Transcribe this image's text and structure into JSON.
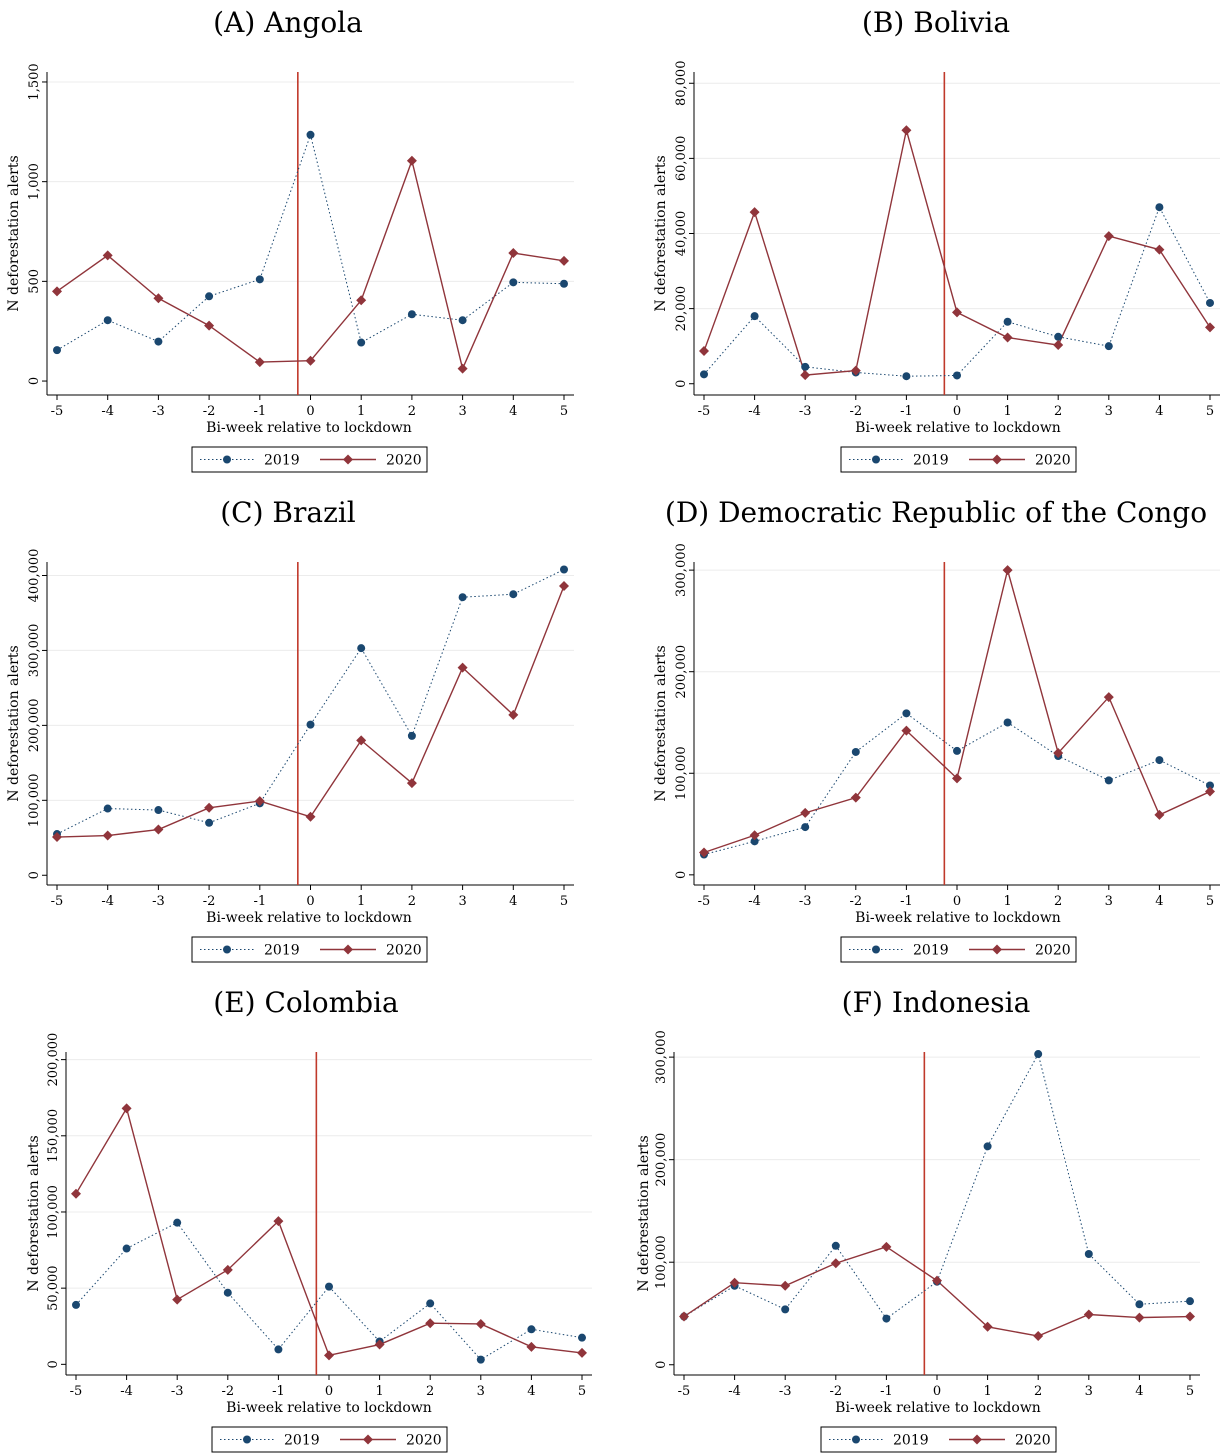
{
  "chart_data": [
    {
      "type": "line",
      "title": "(A) Angola",
      "xlabel": "Bi-week relative to lockdown",
      "ylabel": "N deforestation alerts",
      "x": [
        -5,
        -4,
        -3,
        -2,
        -1,
        0,
        1,
        2,
        3,
        4,
        5
      ],
      "xticks": [
        "-5",
        "-4",
        "-3",
        "-2",
        "-1",
        "0",
        "1",
        "2",
        "3",
        "4",
        "5"
      ],
      "yticks": [
        {
          "v": 0,
          "label": "0"
        },
        {
          "v": 500,
          "label": "500"
        },
        {
          "v": 1000,
          "label": "1,000"
        },
        {
          "v": 1500,
          "label": "1,500"
        }
      ],
      "ylim": [
        -70,
        1550
      ],
      "lockdown_x": -0.25,
      "series": [
        {
          "name": "2019",
          "values": [
            155,
            305,
            198,
            425,
            510,
            1235,
            193,
            335,
            305,
            495,
            488
          ]
        },
        {
          "name": "2020",
          "values": [
            450,
            630,
            415,
            278,
            95,
            102,
            405,
            1105,
            62,
            642,
            603
          ]
        }
      ]
    },
    {
      "type": "line",
      "title": "(B) Bolivia",
      "xlabel": "Bi-week relative to lockdown",
      "ylabel": "N deforestation alerts",
      "x": [
        -5,
        -4,
        -3,
        -2,
        -1,
        0,
        1,
        2,
        3,
        4,
        5
      ],
      "xticks": [
        "-5",
        "-4",
        "-3",
        "-2",
        "-1",
        "0",
        "1",
        "2",
        "3",
        "4",
        "5"
      ],
      "yticks": [
        {
          "v": 0,
          "label": "0"
        },
        {
          "v": 20000,
          "label": "20,000"
        },
        {
          "v": 40000,
          "label": "40,000"
        },
        {
          "v": 60000,
          "label": "60,000"
        },
        {
          "v": 80000,
          "label": "80,000"
        }
      ],
      "ylim": [
        -3000,
        83000
      ],
      "lockdown_x": -0.25,
      "series": [
        {
          "name": "2019",
          "values": [
            2500,
            18000,
            4500,
            3000,
            2000,
            2200,
            16500,
            12500,
            10000,
            47000,
            21500
          ]
        },
        {
          "name": "2020",
          "values": [
            8700,
            45700,
            2300,
            3500,
            67500,
            19000,
            12300,
            10300,
            39300,
            35700,
            15000
          ]
        }
      ]
    },
    {
      "type": "line",
      "title": "(C) Brazil",
      "xlabel": "Bi-week relative to lockdown",
      "ylabel": "N deforestation alerts",
      "x": [
        -5,
        -4,
        -3,
        -2,
        -1,
        0,
        1,
        2,
        3,
        4,
        5
      ],
      "xticks": [
        "-5",
        "-4",
        "-3",
        "-2",
        "-1",
        "0",
        "1",
        "2",
        "3",
        "4",
        "5"
      ],
      "yticks": [
        {
          "v": 0,
          "label": "0"
        },
        {
          "v": 100000,
          "label": "100,000"
        },
        {
          "v": 200000,
          "label": "200,000"
        },
        {
          "v": 300000,
          "label": "300,000"
        },
        {
          "v": 400000,
          "label": "400,000"
        }
      ],
      "ylim": [
        -13000,
        418000
      ],
      "lockdown_x": -0.25,
      "series": [
        {
          "name": "2019",
          "values": [
            55000,
            89000,
            87000,
            70000,
            96000,
            201000,
            303000,
            186000,
            371000,
            375000,
            408000
          ]
        },
        {
          "name": "2020",
          "values": [
            51000,
            53000,
            61000,
            90000,
            99000,
            78000,
            180000,
            123000,
            277000,
            214000,
            386000
          ]
        }
      ]
    },
    {
      "type": "line",
      "title": "(D) Democratic Republic of the Congo",
      "xlabel": "Bi-week relative to lockdown",
      "ylabel": "N deforestation alerts",
      "x": [
        -5,
        -4,
        -3,
        -2,
        -1,
        0,
        1,
        2,
        3,
        4,
        5
      ],
      "xticks": [
        "-5",
        "-4",
        "-3",
        "-2",
        "-1",
        "0",
        "1",
        "2",
        "3",
        "4",
        "5"
      ],
      "yticks": [
        {
          "v": 0,
          "label": "0"
        },
        {
          "v": 100000,
          "label": "100,000"
        },
        {
          "v": 200000,
          "label": "200,000"
        },
        {
          "v": 300000,
          "label": "300,000"
        }
      ],
      "ylim": [
        -10000,
        308000
      ],
      "lockdown_x": -0.25,
      "series": [
        {
          "name": "2019",
          "values": [
            20000,
            33000,
            47000,
            121000,
            159000,
            122000,
            150000,
            117000,
            93000,
            113000,
            88000
          ]
        },
        {
          "name": "2020",
          "values": [
            22000,
            39000,
            61000,
            76000,
            142000,
            95000,
            300000,
            120000,
            175000,
            59000,
            82000
          ]
        }
      ]
    },
    {
      "type": "line",
      "title": "(E) Colombia",
      "xlabel": "Bi-week relative to lockdown",
      "ylabel": "N deforestation alerts",
      "x": [
        -5,
        -4,
        -3,
        -2,
        -1,
        0,
        1,
        2,
        3,
        4,
        5
      ],
      "xticks": [
        "-5",
        "-4",
        "-3",
        "-2",
        "-1",
        "0",
        "1",
        "2",
        "3",
        "4",
        "5"
      ],
      "yticks": [
        {
          "v": 0,
          "label": "0"
        },
        {
          "v": 50000,
          "label": "50,000"
        },
        {
          "v": 100000,
          "label": "100,000"
        },
        {
          "v": 150000,
          "label": "150,000"
        },
        {
          "v": 200000,
          "label": "200,000"
        }
      ],
      "ylim": [
        -7000,
        205000
      ],
      "lockdown_x": -0.25,
      "series": [
        {
          "name": "2019",
          "values": [
            39000,
            76000,
            93000,
            47000,
            9800,
            51000,
            15000,
            40000,
            3100,
            23000,
            17500
          ]
        },
        {
          "name": "2020",
          "values": [
            112000,
            168000,
            42500,
            62000,
            94000,
            5900,
            13000,
            27000,
            26500,
            11500,
            7500
          ]
        }
      ]
    },
    {
      "type": "line",
      "title": "(F) Indonesia",
      "xlabel": "Bi-week relative to lockdown",
      "ylabel": "N deforestation alerts",
      "x": [
        -5,
        -4,
        -3,
        -2,
        -1,
        0,
        1,
        2,
        3,
        4,
        5
      ],
      "xticks": [
        "-5",
        "-4",
        "-3",
        "-2",
        "-1",
        "0",
        "1",
        "2",
        "3",
        "4",
        "5"
      ],
      "yticks": [
        {
          "v": 0,
          "label": "0"
        },
        {
          "v": 100000,
          "label": "100,000"
        },
        {
          "v": 200000,
          "label": "200,000"
        },
        {
          "v": 300000,
          "label": "300,000"
        }
      ],
      "ylim": [
        -10000,
        305000
      ],
      "lockdown_x": -0.25,
      "series": [
        {
          "name": "2019",
          "values": [
            47000,
            77000,
            54000,
            116000,
            45000,
            81000,
            213000,
            303000,
            108000,
            59000,
            62000
          ]
        },
        {
          "name": "2020",
          "values": [
            47000,
            80000,
            77000,
            99000,
            115000,
            82000,
            37000,
            28000,
            49000,
            46000,
            47000
          ]
        }
      ]
    }
  ],
  "style": {
    "color_2019": "#1a476f",
    "color_2020": "#90353b",
    "lockdown_line_color": "#c0392b",
    "grid_color": "#ececec"
  }
}
